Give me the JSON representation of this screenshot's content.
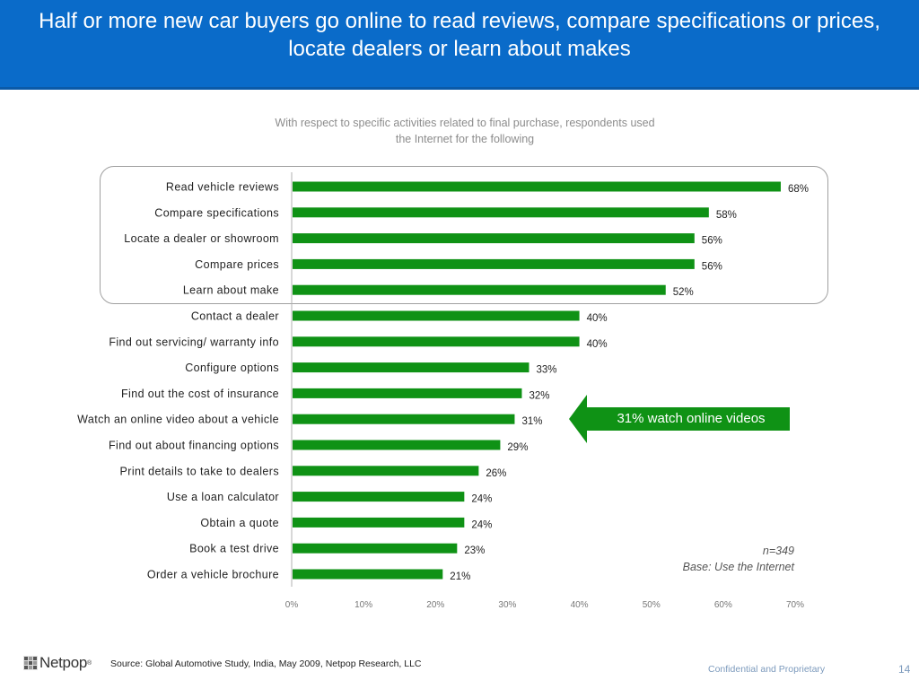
{
  "header": {
    "title": "Half or more new car buyers go online to read reviews, compare specifications or prices, locate dealers or learn about makes",
    "bg_color": "#0a6bc9"
  },
  "chart_data": {
    "type": "bar",
    "orientation": "horizontal",
    "title": "With respect to specific activities related to final purchase, respondents used the Internet for the following",
    "categories": [
      "Read vehicle reviews",
      "Compare specifications",
      "Locate a dealer or showroom",
      "Compare prices",
      "Learn about make",
      "Contact a dealer",
      "Find out servicing/ warranty info",
      "Configure options",
      "Find out the cost of insurance",
      "Watch an online video about a vehicle",
      "Find out about financing options",
      "Print details to take to dealers",
      "Use a loan calculator",
      "Obtain a quote",
      "Book a test drive",
      "Order a vehicle brochure"
    ],
    "values": [
      68,
      58,
      56,
      56,
      52,
      40,
      40,
      33,
      32,
      31,
      29,
      26,
      24,
      24,
      23,
      21
    ],
    "value_labels": [
      "68%",
      "58%",
      "56%",
      "56%",
      "52%",
      "40%",
      "40%",
      "33%",
      "32%",
      "31%",
      "29%",
      "26%",
      "24%",
      "24%",
      "23%",
      "21%"
    ],
    "xlim": [
      0,
      70
    ],
    "x_ticks": [
      "0%",
      "10%",
      "20%",
      "30%",
      "40%",
      "50%",
      "60%",
      "70%"
    ],
    "grid": false,
    "bar_color": "#0f9215",
    "highlighted_top_n": 5
  },
  "callout": {
    "text": "31% watch online videos",
    "color": "#0f9215"
  },
  "notes": {
    "sample": "n=349",
    "base": "Base: Use the Internet"
  },
  "footer": {
    "logo_text": "Netpop",
    "logo_reg": "®",
    "source": "Source: Global Automotive Study,  India, May 2009, Netpop Research, LLC",
    "confidential": "Confidential and Proprietary",
    "page_number": "14"
  }
}
